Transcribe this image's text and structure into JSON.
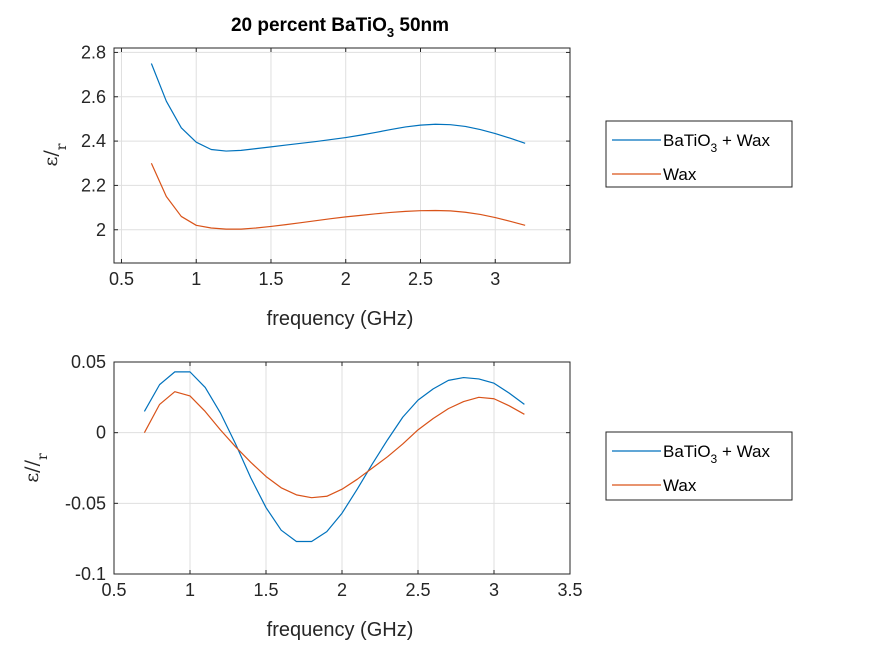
{
  "title": {
    "main": "20 percent BaTiO",
    "sub": "3",
    "tail": " 50nm"
  },
  "colors": {
    "series1": "#0072BD",
    "series2": "#D95319",
    "grid": "#dfdfdf",
    "axis": "#262626"
  },
  "chart_data": [
    {
      "type": "line",
      "title": "20 percent BaTiO3 50nm",
      "xlabel": "frequency (GHz)",
      "ylabel": {
        "main": "ε/",
        "sub": "r"
      },
      "xlim": [
        0.45,
        3.5
      ],
      "ylim": [
        1.85,
        2.82
      ],
      "xticks": [
        "0.5",
        "1",
        "1.5",
        "2",
        "2.5",
        "3"
      ],
      "xtick_values": [
        0.5,
        1,
        1.5,
        2,
        2.5,
        3
      ],
      "yticks": [
        "2",
        "2.2",
        "2.4",
        "2.6",
        "2.8"
      ],
      "ytick_values": [
        2,
        2.2,
        2.4,
        2.6,
        2.8
      ],
      "grid": true,
      "legend": "outside-right",
      "x": [
        0.7,
        0.8,
        0.9,
        1.0,
        1.1,
        1.2,
        1.3,
        1.4,
        1.5,
        1.6,
        1.7,
        1.8,
        1.9,
        2.0,
        2.1,
        2.2,
        2.3,
        2.4,
        2.5,
        2.6,
        2.7,
        2.8,
        2.9,
        3.0,
        3.1,
        3.2
      ],
      "series": [
        {
          "name": "BaTiO3 + Wax",
          "label_main": "BaTiO",
          "label_sub": "3",
          "label_tail": " + Wax",
          "color": "#0072BD",
          "values": [
            2.75,
            2.58,
            2.46,
            2.395,
            2.362,
            2.355,
            2.358,
            2.366,
            2.374,
            2.382,
            2.39,
            2.398,
            2.407,
            2.416,
            2.427,
            2.439,
            2.452,
            2.464,
            2.472,
            2.476,
            2.474,
            2.466,
            2.452,
            2.434,
            2.413,
            2.39
          ]
        },
        {
          "name": "Wax",
          "label_main": "Wax",
          "label_sub": "",
          "label_tail": "",
          "color": "#D95319",
          "values": [
            2.3,
            2.15,
            2.06,
            2.02,
            2.008,
            2.003,
            2.003,
            2.008,
            2.015,
            2.023,
            2.032,
            2.041,
            2.05,
            2.058,
            2.065,
            2.072,
            2.078,
            2.083,
            2.086,
            2.087,
            2.085,
            2.079,
            2.069,
            2.055,
            2.038,
            2.02
          ]
        }
      ]
    },
    {
      "type": "line",
      "xlabel": "frequency (GHz)",
      "ylabel": {
        "main": "ε//",
        "sub": "r"
      },
      "xlim": [
        0.5,
        3.5
      ],
      "ylim": [
        -0.1,
        0.05
      ],
      "xticks": [
        "0.5",
        "1",
        "1.5",
        "2",
        "2.5",
        "3",
        "3.5"
      ],
      "xtick_values": [
        0.5,
        1,
        1.5,
        2,
        2.5,
        3,
        3.5
      ],
      "yticks": [
        "-0.1",
        "-0.05",
        "0",
        "0.05"
      ],
      "ytick_values": [
        -0.1,
        -0.05,
        0,
        0.05
      ],
      "grid": true,
      "legend": "outside-right",
      "x": [
        0.7,
        0.8,
        0.9,
        1.0,
        1.1,
        1.2,
        1.3,
        1.4,
        1.5,
        1.6,
        1.7,
        1.8,
        1.9,
        2.0,
        2.1,
        2.2,
        2.3,
        2.4,
        2.5,
        2.6,
        2.7,
        2.8,
        2.9,
        3.0,
        3.1,
        3.2
      ],
      "series": [
        {
          "name": "BaTiO3 + Wax",
          "label_main": "BaTiO",
          "label_sub": "3",
          "label_tail": " + Wax",
          "color": "#0072BD",
          "values": [
            0.015,
            0.034,
            0.043,
            0.043,
            0.032,
            0.014,
            -0.008,
            -0.032,
            -0.053,
            -0.069,
            -0.077,
            -0.077,
            -0.07,
            -0.057,
            -0.04,
            -0.022,
            -0.005,
            0.011,
            0.023,
            0.031,
            0.037,
            0.039,
            0.038,
            0.035,
            0.028,
            0.02
          ]
        },
        {
          "name": "Wax",
          "label_main": "Wax",
          "label_sub": "",
          "label_tail": "",
          "color": "#D95319",
          "values": [
            0.0,
            0.02,
            0.029,
            0.026,
            0.015,
            0.002,
            -0.01,
            -0.021,
            -0.031,
            -0.039,
            -0.044,
            -0.046,
            -0.045,
            -0.04,
            -0.033,
            -0.025,
            -0.017,
            -0.008,
            0.002,
            0.01,
            0.017,
            0.022,
            0.025,
            0.024,
            0.019,
            0.013
          ]
        }
      ]
    }
  ]
}
